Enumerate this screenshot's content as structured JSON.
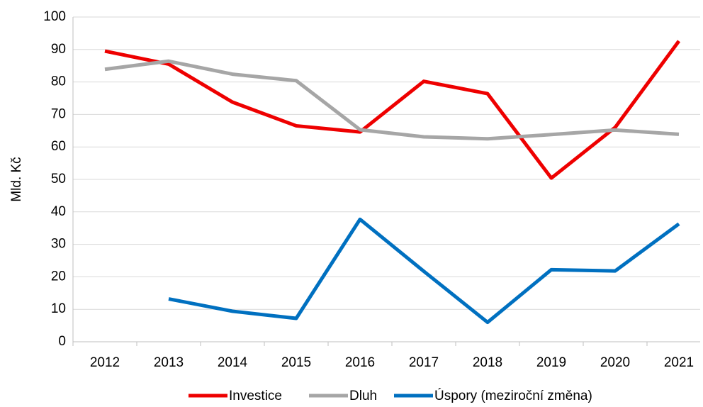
{
  "chart_data": {
    "type": "line",
    "ylabel": "Mld. Kč",
    "categories": [
      "2012",
      "2013",
      "2014",
      "2015",
      "2016",
      "2017",
      "2018",
      "2019",
      "2020",
      "2021"
    ],
    "series": [
      {
        "name": "Investice",
        "color": "#ee0000",
        "values": [
          89.5,
          85.5,
          73.8,
          66.5,
          64.6,
          80.2,
          76.4,
          50.4,
          66.0,
          92.6
        ]
      },
      {
        "name": "Dluh",
        "color": "#a6a6a6",
        "values": [
          83.9,
          86.4,
          82.4,
          80.4,
          65.3,
          63.1,
          62.5,
          63.8,
          65.2,
          63.9
        ]
      },
      {
        "name": "Úspory (meziroční změna)",
        "color": "#0070c0",
        "values": [
          null,
          13.2,
          9.4,
          7.2,
          37.7,
          21.7,
          6.0,
          22.2,
          21.8,
          36.3
        ]
      }
    ],
    "ylim": [
      0,
      100
    ],
    "yticks": [
      0,
      10,
      20,
      30,
      40,
      50,
      60,
      70,
      80,
      90,
      100
    ],
    "grid": true,
    "legend": "bottom"
  }
}
